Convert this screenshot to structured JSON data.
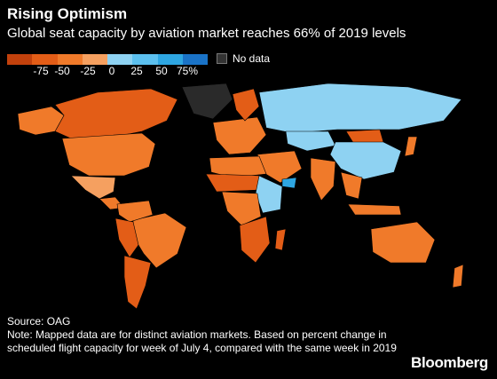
{
  "header": {
    "title": "Rising Optimism",
    "subtitle": "Global seat capacity by aviation market reaches 66% of 2019 levels"
  },
  "legend": {
    "ticks": [
      "-75",
      "-50",
      "-25",
      "0",
      "25",
      "50",
      "75%"
    ],
    "tick_values": [
      -75,
      -50,
      -25,
      0,
      25,
      50,
      75
    ],
    "scale_colors": [
      "#c2410c",
      "#e35d17",
      "#f07a2a",
      "#f5a060",
      "#8ed2f2",
      "#5cc0ef",
      "#2ea6e2",
      "#1a73c7"
    ],
    "no_data_label": "No data",
    "no_data_color": "#333333"
  },
  "map": {
    "land_no_data": "#2a2a2a",
    "regions": [
      {
        "name": "Canada",
        "change": -60
      },
      {
        "name": "Alaska",
        "change": -35
      },
      {
        "name": "United States",
        "change": -30
      },
      {
        "name": "Mexico",
        "change": -10
      },
      {
        "name": "Central America",
        "change": -40
      },
      {
        "name": "Brazil",
        "change": -45
      },
      {
        "name": "Colombia-Venezuela",
        "change": -40
      },
      {
        "name": "Peru-Bolivia",
        "change": -55
      },
      {
        "name": "Chile-Argentina",
        "change": -70
      },
      {
        "name": "Greenland",
        "change": null
      },
      {
        "name": "Western Europe",
        "change": -45
      },
      {
        "name": "Scandinavia",
        "change": -55
      },
      {
        "name": "Russia",
        "change": 20
      },
      {
        "name": "Kazakhstan-Central Asia",
        "change": 15
      },
      {
        "name": "Mongolia",
        "change": -75
      },
      {
        "name": "China",
        "change": 10
      },
      {
        "name": "India",
        "change": -45
      },
      {
        "name": "Middle East",
        "change": -40
      },
      {
        "name": "North Africa",
        "change": -50
      },
      {
        "name": "Sahel",
        "change": -65
      },
      {
        "name": "East Africa",
        "change": 10
      },
      {
        "name": "Yemen",
        "change": 70
      },
      {
        "name": "Central Africa",
        "change": -40
      },
      {
        "name": "Southern Africa",
        "change": -60
      },
      {
        "name": "Madagascar",
        "change": -55
      },
      {
        "name": "Southeast Asia",
        "change": -50
      },
      {
        "name": "Indonesia",
        "change": -50
      },
      {
        "name": "Japan",
        "change": -35
      },
      {
        "name": "Australia",
        "change": -45
      },
      {
        "name": "New Zealand",
        "change": -40
      }
    ]
  },
  "footer": {
    "source": "Source: OAG",
    "note": "Note: Mapped data are for distinct aviation markets. Based on percent change in scheduled flight capacity for week of July 4, compared with the same week in 2019",
    "brand": "Bloomberg"
  }
}
